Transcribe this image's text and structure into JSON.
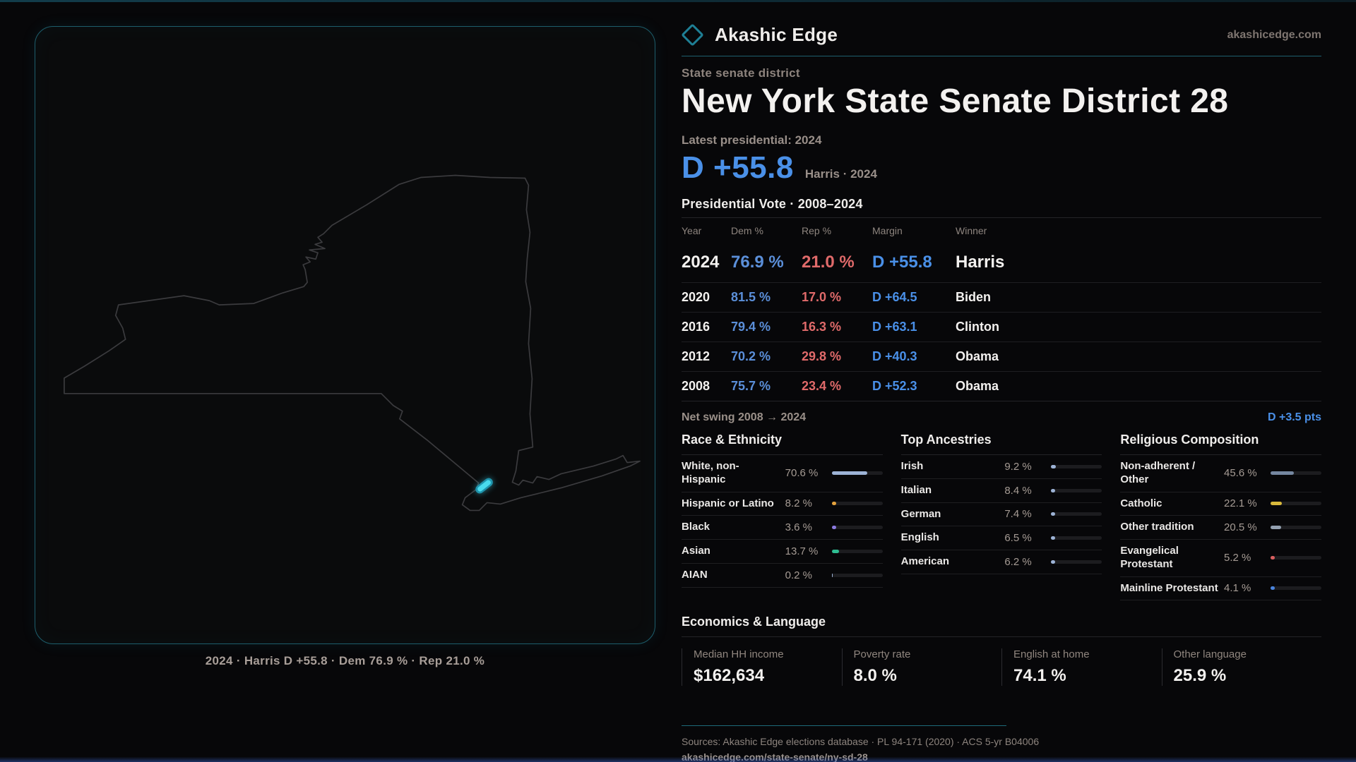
{
  "brand": {
    "name": "Akashic Edge",
    "domain": "akashicedge.com"
  },
  "header": {
    "kicker": "State senate district",
    "title": "New York State Senate District 28"
  },
  "headline": {
    "label": "Latest presidential: 2024",
    "margin": "D +55.8",
    "detail": "Harris · 2024"
  },
  "vote_table": {
    "title": "Presidential Vote · 2008–2024",
    "columns": {
      "year": "Year",
      "dem": "Dem %",
      "rep": "Rep %",
      "margin": "Margin",
      "winner": "Winner"
    },
    "rows": [
      {
        "year": "2024",
        "dem": "76.9 %",
        "rep": "21.0 %",
        "margin": "D +55.8",
        "winner": "Harris"
      },
      {
        "year": "2020",
        "dem": "81.5 %",
        "rep": "17.0 %",
        "margin": "D +64.5",
        "winner": "Biden"
      },
      {
        "year": "2016",
        "dem": "79.4 %",
        "rep": "16.3 %",
        "margin": "D +63.1",
        "winner": "Clinton"
      },
      {
        "year": "2012",
        "dem": "70.2 %",
        "rep": "29.8 %",
        "margin": "D +40.3",
        "winner": "Obama"
      },
      {
        "year": "2008",
        "dem": "75.7 %",
        "rep": "23.4 %",
        "margin": "D +52.3",
        "winner": "Obama"
      }
    ]
  },
  "net_swing": {
    "label": "Net swing 2008 → 2024",
    "value": "D +3.5 pts"
  },
  "demographics": {
    "sections": [
      {
        "title": "Race & Ethnicity",
        "rows": [
          {
            "label": "White, non-Hispanic",
            "value": "70.6 %",
            "pct": 70.6,
            "color": "#9db3d6"
          },
          {
            "label": "Hispanic or Latino",
            "value": "8.2 %",
            "pct": 8.2,
            "color": "#e5a33e"
          },
          {
            "label": "Black",
            "value": "3.6 %",
            "pct": 3.6,
            "color": "#8b7ae0"
          },
          {
            "label": "Asian",
            "value": "13.7 %",
            "pct": 13.7,
            "color": "#2ebd92"
          },
          {
            "label": "AIAN",
            "value": "0.2 %",
            "pct": 0.2,
            "color": "#9db3d6"
          }
        ]
      },
      {
        "title": "Top Ancestries",
        "rows": [
          {
            "label": "Irish",
            "value": "9.2 %",
            "pct": 9.2,
            "color": "#9db3d6"
          },
          {
            "label": "Italian",
            "value": "8.4 %",
            "pct": 8.4,
            "color": "#9db3d6"
          },
          {
            "label": "German",
            "value": "7.4 %",
            "pct": 7.4,
            "color": "#9db3d6"
          },
          {
            "label": "English",
            "value": "6.5 %",
            "pct": 6.5,
            "color": "#9db3d6"
          },
          {
            "label": "American",
            "value": "6.2 %",
            "pct": 6.2,
            "color": "#9db3d6"
          }
        ]
      },
      {
        "title": "Religious Composition",
        "rows": [
          {
            "label": "Non-adherent / Other",
            "value": "45.6 %",
            "pct": 45.6,
            "color": "#7587a0"
          },
          {
            "label": "Catholic",
            "value": "22.1 %",
            "pct": 22.1,
            "color": "#d9b93c"
          },
          {
            "label": "Other tradition",
            "value": "20.5 %",
            "pct": 20.5,
            "color": "#93a0b0"
          },
          {
            "label": "Evangelical Protestant",
            "value": "5.2 %",
            "pct": 5.2,
            "color": "#d95f5f"
          },
          {
            "label": "Mainline Protestant",
            "value": "4.1 %",
            "pct": 4.1,
            "color": "#4a84dd"
          }
        ]
      }
    ]
  },
  "economics": {
    "title": "Economics & Language",
    "stats": [
      {
        "label": "Median HH income",
        "value": "$162,634"
      },
      {
        "label": "Poverty rate",
        "value": "8.0 %"
      },
      {
        "label": "English at home",
        "value": "74.1 %"
      },
      {
        "label": "Other language",
        "value": "25.9 %"
      }
    ]
  },
  "footer": {
    "sources": "Sources: Akashic Edge elections database · PL 94-171 (2020) · ACS 5-yr B04006",
    "permalink": "akashicedge.com/state-senate/ny-sd-28"
  },
  "map": {
    "caption": "2024 · Harris D +55.8 · Dem 76.9 % · Rep 21.0 %",
    "outline_color": "#3b3b3e",
    "highlight_color": "#3ad2ea",
    "border_color": "#1d5d6b"
  },
  "colors": {
    "dem_blue": "#5b8fd9",
    "margin_blue": "#4a90e8",
    "rep_red": "#e06a6a",
    "accent_teal": "#1d6a7a"
  }
}
